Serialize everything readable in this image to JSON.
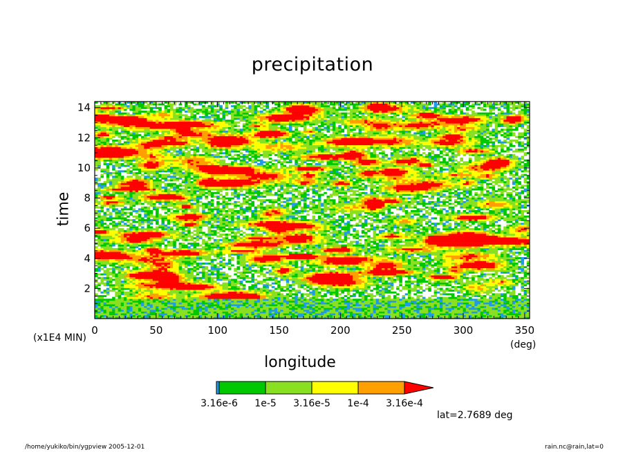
{
  "chart_data": {
    "type": "heatmap",
    "title": "precipitation",
    "xlabel": "longitude",
    "ylabel": "time",
    "x_unit": "(deg)",
    "y_unit": "(x1E4 MIN)",
    "xlim": [
      0,
      354
    ],
    "ylim": [
      0,
      14.4
    ],
    "x_ticks": [
      0,
      50,
      100,
      150,
      200,
      250,
      300,
      350
    ],
    "y_ticks": [
      2,
      4,
      6,
      8,
      10,
      12,
      14
    ],
    "colorbar": {
      "levels": [
        3.16e-06,
        1e-05,
        3.16e-05,
        0.0001,
        0.000316
      ],
      "colors": [
        "#1f9be6",
        "#00c800",
        "#88e020",
        "#ffff00",
        "#ffa000",
        "#ff0000"
      ],
      "labels": [
        "3.16e-6",
        "1e-5",
        "3.16e-5",
        "1e-4",
        "3.16e-4"
      ]
    },
    "annotation": "lat=2.7689 deg"
  },
  "footer": {
    "left": "/home/yukiko/bin/ygpview  2005-12-01",
    "right": "rain.nc@rain,lat=0"
  }
}
